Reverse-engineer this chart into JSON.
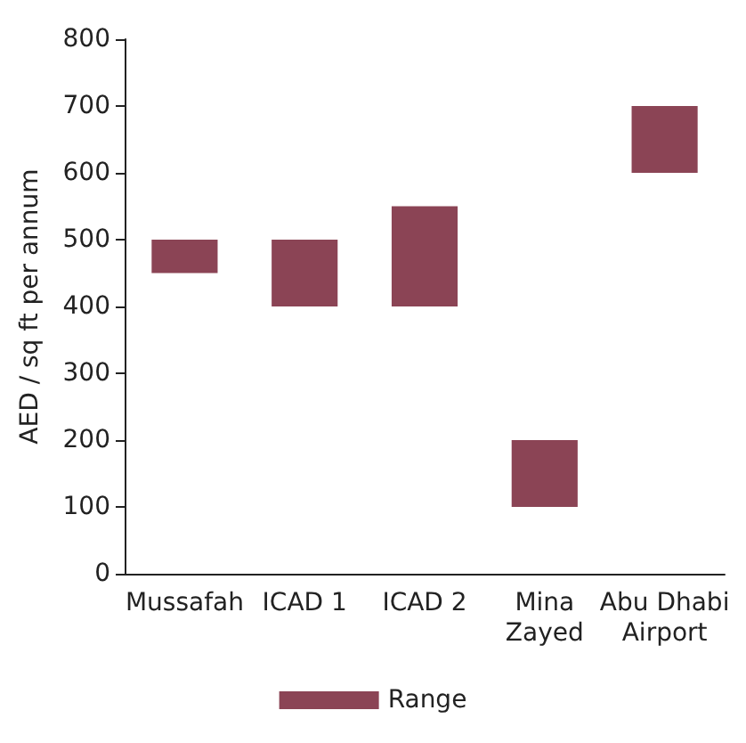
{
  "chart_data": {
    "type": "bar",
    "ylabel": "AED / sq ft per annum",
    "categories": [
      "Mussafah",
      "ICAD 1",
      "ICAD 2",
      "Mina\nZayed",
      "Abu Dhabi\nAirport"
    ],
    "series": [
      {
        "name": "Range",
        "color": "#8b4455",
        "values": [
          50,
          100,
          150,
          100,
          100
        ],
        "base": [
          450,
          400,
          400,
          100,
          600
        ]
      }
    ],
    "ylim": [
      0,
      800
    ],
    "yticks": [
      0,
      100,
      200,
      300,
      400,
      500,
      600,
      700,
      800
    ],
    "grid": false,
    "legend": "bottom"
  }
}
